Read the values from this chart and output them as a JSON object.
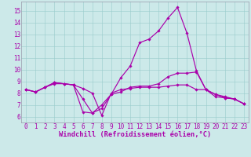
{
  "xlabel": "Windchill (Refroidissement éolien,°C)",
  "xlim": [
    -0.5,
    23.5
  ],
  "ylim": [
    5.5,
    15.8
  ],
  "yticks": [
    6,
    7,
    8,
    9,
    10,
    11,
    12,
    13,
    14,
    15
  ],
  "xticks": [
    0,
    1,
    2,
    3,
    4,
    5,
    6,
    7,
    8,
    9,
    10,
    11,
    12,
    13,
    14,
    15,
    16,
    17,
    18,
    19,
    20,
    21,
    22,
    23
  ],
  "bg_color": "#cce9e9",
  "line_color": "#aa00aa",
  "grid_color": "#99cccc",
  "spine_color": "#9999aa",
  "lines": [
    [
      8.3,
      8.1,
      8.5,
      8.9,
      8.8,
      8.7,
      6.4,
      6.3,
      6.7,
      7.9,
      9.3,
      10.3,
      12.3,
      12.6,
      13.3,
      14.4,
      15.3,
      13.1,
      9.9,
      8.3,
      7.9,
      7.6,
      7.5,
      7.1
    ],
    [
      8.3,
      8.1,
      8.5,
      8.9,
      8.8,
      8.7,
      7.5,
      6.3,
      7.0,
      7.9,
      8.1,
      8.5,
      8.6,
      8.6,
      8.8,
      9.4,
      9.7,
      9.7,
      9.8,
      8.3,
      7.7,
      7.6,
      7.5,
      7.1
    ],
    [
      8.3,
      8.1,
      8.5,
      8.8,
      8.8,
      8.7,
      8.4,
      8.0,
      6.1,
      8.0,
      8.3,
      8.4,
      8.5,
      8.5,
      8.5,
      8.6,
      8.7,
      8.7,
      8.3,
      8.3,
      7.9,
      7.7,
      7.5,
      7.1
    ]
  ],
  "tick_fontsize": 5.5,
  "label_fontsize": 6.2,
  "linewidth": 0.85,
  "markersize": 1.8
}
